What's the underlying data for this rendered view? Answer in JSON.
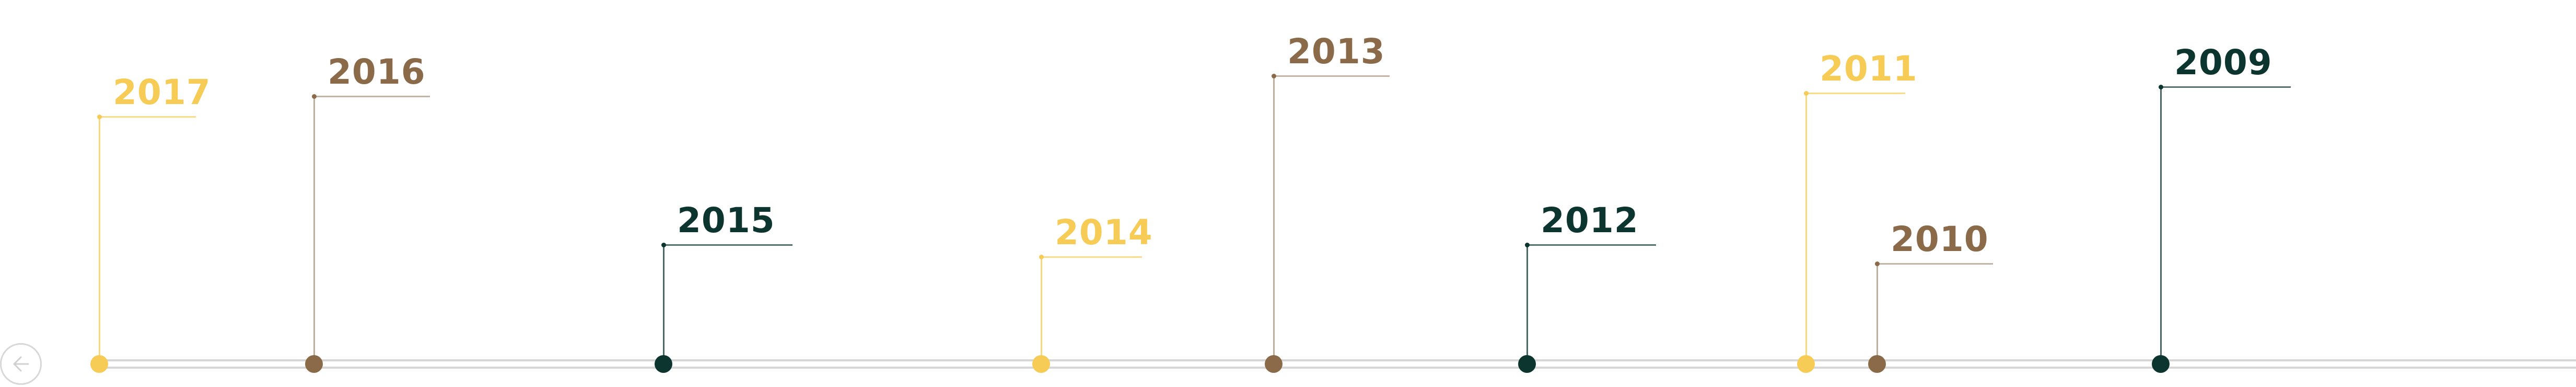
{
  "colors": {
    "gold": "#f6cc56",
    "brown": "#8a6a48",
    "teal": "#0c3530",
    "track": "#d6d6d6",
    "nav_ring": "#d7d7d7"
  },
  "nav": {
    "prev_icon": "arrow-left-icon"
  },
  "milestones": [
    {
      "year": "2017",
      "color": "gold"
    },
    {
      "year": "2016",
      "color": "brown"
    },
    {
      "year": "2015",
      "color": "teal"
    },
    {
      "year": "2014",
      "color": "gold"
    },
    {
      "year": "2013",
      "color": "brown"
    },
    {
      "year": "2012",
      "color": "teal"
    },
    {
      "year": "2011",
      "color": "gold"
    },
    {
      "year": "2010",
      "color": "brown"
    },
    {
      "year": "2009",
      "color": "teal"
    }
  ]
}
